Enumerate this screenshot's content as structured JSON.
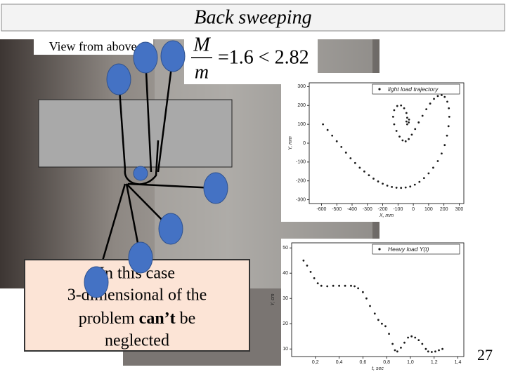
{
  "slide": {
    "title": "Back sweeping",
    "view_label": "View from above",
    "formula": {
      "numerator": "M",
      "denominator": "m",
      "rest": "=1.6 < 2.82"
    },
    "callout": {
      "line1": "In this case",
      "line2": "3-dimensional of the",
      "line3_before": "problem ",
      "line3_bold": "can’t",
      "line3_after": " be",
      "line4": "neglected"
    },
    "page_number": "27"
  },
  "chart_data": [
    {
      "type": "scatter",
      "xlabel": "X, mm",
      "ylabel": "Y, mm",
      "legend": "upper right",
      "xlim": [
        -680,
        330
      ],
      "ylim": [
        -320,
        320
      ],
      "xticks": [
        -600,
        -500,
        -400,
        -300,
        -200,
        -100,
        0,
        100,
        200,
        300
      ],
      "yticks": [
        -300,
        -200,
        -100,
        0,
        100,
        200,
        300
      ],
      "x": [
        -590,
        -560,
        -530,
        -500,
        -470,
        -440,
        -410,
        -380,
        -350,
        -320,
        -290,
        -260,
        -230,
        -200,
        -170,
        -140,
        -110,
        -80,
        -50,
        -20,
        10,
        40,
        70,
        100,
        130,
        160,
        185,
        205,
        220,
        230,
        235,
        232,
        222,
        205,
        185,
        160,
        135,
        110,
        85,
        60,
        35,
        12,
        -10,
        -30,
        -50,
        -70,
        -90,
        -110,
        -125,
        -132,
        -125,
        -105,
        -80,
        -60,
        -45,
        -40,
        -45,
        -40,
        -30,
        -28
      ],
      "series": [
        {
          "name": "light load trajectory",
          "color": "#1a1a1a",
          "values": [
            100,
            70,
            40,
            10,
            -20,
            -50,
            -80,
            -105,
            -130,
            -150,
            -170,
            -188,
            -203,
            -215,
            -225,
            -232,
            -236,
            -237,
            -235,
            -230,
            -220,
            -205,
            -185,
            -160,
            -130,
            -95,
            -55,
            -10,
            40,
            90,
            140,
            185,
            220,
            245,
            255,
            250,
            235,
            210,
            180,
            145,
            110,
            75,
            45,
            22,
            10,
            15,
            35,
            65,
            100,
            140,
            175,
            197,
            200,
            185,
            160,
            135,
            115,
            100,
            110,
            125
          ]
        }
      ]
    },
    {
      "type": "scatter",
      "xlabel": "t, sec",
      "ylabel": "Y, cm",
      "legend": "upper right",
      "xlim": [
        0,
        1.45
      ],
      "ylim": [
        7,
        52
      ],
      "xticks": [
        {
          "value": 0.2,
          "label": "0,2"
        },
        {
          "value": 0.4,
          "label": "0,4"
        },
        {
          "value": 0.6,
          "label": "0,6"
        },
        {
          "value": 0.8,
          "label": "0,8"
        },
        {
          "value": 1.0,
          "label": "1,0"
        },
        {
          "value": 1.2,
          "label": "1,2"
        },
        {
          "value": 1.4,
          "label": "1,4"
        }
      ],
      "yticks": [
        10,
        20,
        30,
        40,
        50
      ],
      "x": [
        0.1,
        0.13,
        0.16,
        0.19,
        0.22,
        0.25,
        0.3,
        0.35,
        0.4,
        0.45,
        0.5,
        0.53,
        0.56,
        0.6,
        0.63,
        0.66,
        0.7,
        0.73,
        0.76,
        0.79,
        0.82,
        0.85,
        0.87,
        0.89,
        0.92,
        0.95,
        0.98,
        1.01,
        1.04,
        1.07,
        1.1,
        1.13,
        1.15,
        1.18,
        1.21,
        1.24,
        1.27
      ],
      "series": [
        {
          "name": "Heavy load Y(t)",
          "color": "#1a1a1a",
          "values": [
            45,
            43,
            40.5,
            38,
            36,
            35,
            34.8,
            35,
            35,
            35,
            35,
            34.8,
            34,
            32.5,
            30,
            27,
            24,
            21.5,
            20,
            19,
            16,
            12,
            9.5,
            9,
            10.5,
            12.5,
            14.5,
            15,
            14.5,
            13.5,
            12,
            10,
            9,
            8.8,
            9,
            9.5,
            10
          ]
        }
      ]
    }
  ]
}
